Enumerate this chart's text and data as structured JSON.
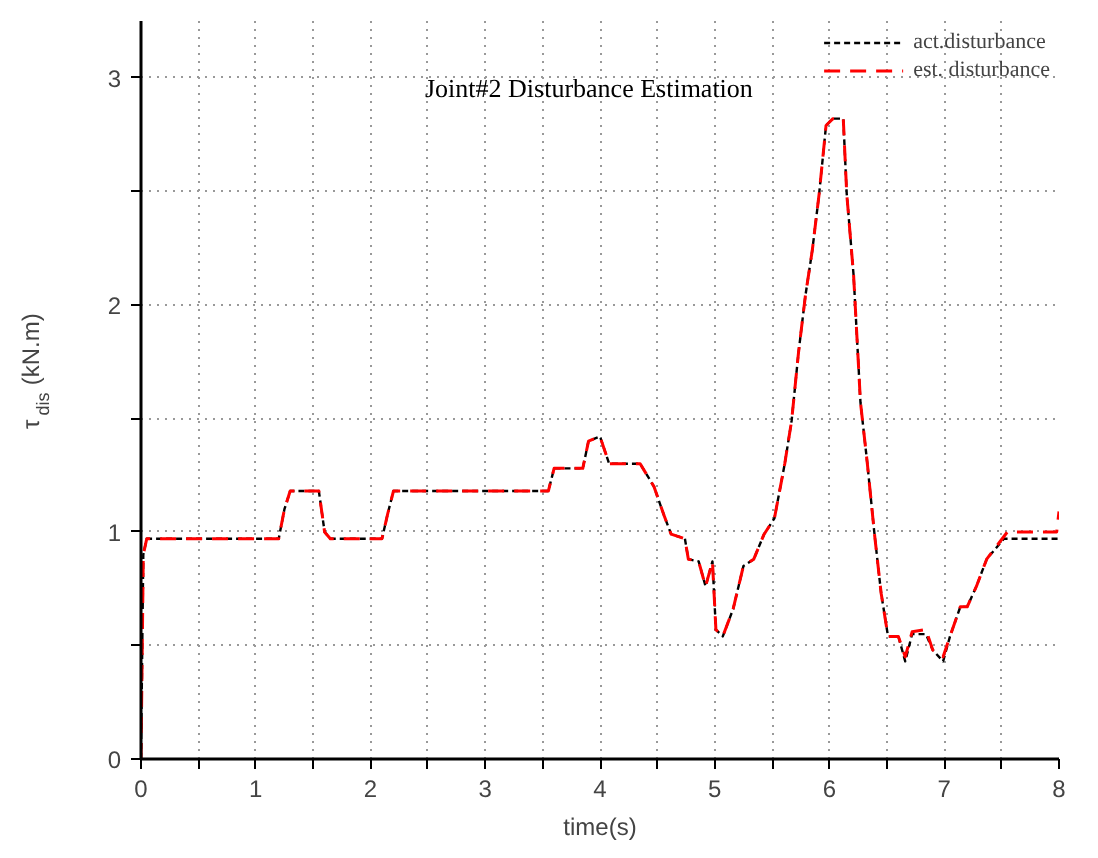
{
  "chart_data": {
    "type": "line",
    "title": "Joint#2 Disturbance Estimation",
    "xlabel": "time(s)",
    "ylabel": "τ$_{dis}$(kN.m)",
    "xlim": [
      0,
      8
    ],
    "ylim": [
      0,
      3.25
    ],
    "xticks": [
      0,
      {
        "value": 0.5,
        "label": null
      },
      1,
      {
        "value": 1.5,
        "label": null
      },
      2,
      {
        "value": 2.5,
        "label": null
      },
      3,
      {
        "value": 3.5,
        "label": null
      },
      4,
      {
        "value": 4.5,
        "label": null
      },
      5,
      {
        "value": 5.5,
        "label": null
      },
      6,
      {
        "value": 6.5,
        "label": null
      },
      7,
      {
        "value": 7.5,
        "label": null
      },
      8
    ],
    "yticks": [
      0,
      {
        "value": 0.5,
        "label": null
      },
      1,
      {
        "value": 1.5,
        "label": null
      },
      2,
      {
        "value": 2.5,
        "label": null
      },
      3
    ],
    "grid": true,
    "legend": "top right",
    "series": [
      {
        "name": "act.disturbance",
        "color": "#000000",
        "line_style": "dotted",
        "x": [
          0,
          0.02,
          0.05,
          1.2,
          1.25,
          1.3,
          1.55,
          1.6,
          1.65,
          2.1,
          2.15,
          2.2,
          3.55,
          3.6,
          3.85,
          3.9,
          4.0,
          4.08,
          4.35,
          4.47,
          4.56,
          4.62,
          4.74,
          4.77,
          4.86,
          4.92,
          4.98,
          5.01,
          5.07,
          5.16,
          5.25,
          5.34,
          5.43,
          5.52,
          5.61,
          5.67,
          5.73,
          5.79,
          5.85,
          5.91,
          5.97,
          6.03,
          6.12,
          6.15,
          6.21,
          6.27,
          6.33,
          6.39,
          6.45,
          6.51,
          6.6,
          6.66,
          6.72,
          6.84,
          6.9,
          6.99,
          7.05,
          7.14,
          7.2,
          7.28,
          7.37,
          7.52,
          8.0
        ],
        "values": [
          0,
          0.9,
          0.97,
          0.97,
          1.1,
          1.18,
          1.18,
          1.0,
          0.97,
          0.97,
          1.08,
          1.18,
          1.18,
          1.28,
          1.28,
          1.4,
          1.42,
          1.3,
          1.3,
          1.2,
          1.07,
          0.99,
          0.97,
          0.88,
          0.87,
          0.76,
          0.87,
          0.57,
          0.54,
          0.66,
          0.85,
          0.88,
          0.99,
          1.06,
          1.3,
          1.49,
          1.79,
          2.04,
          2.24,
          2.49,
          2.79,
          2.82,
          2.82,
          2.49,
          2.13,
          1.57,
          1.3,
          1.0,
          0.73,
          0.54,
          0.54,
          0.43,
          0.55,
          0.55,
          0.48,
          0.43,
          0.54,
          0.67,
          0.67,
          0.76,
          0.88,
          0.97,
          0.97
        ]
      },
      {
        "name": "est. disturbance",
        "color": "#ff0000",
        "line_style": "dashed",
        "x": [
          0,
          0.02,
          0.05,
          1.2,
          1.25,
          1.3,
          1.55,
          1.6,
          1.65,
          2.1,
          2.15,
          2.2,
          3.55,
          3.6,
          3.85,
          3.9,
          4.0,
          4.08,
          4.35,
          4.47,
          4.56,
          4.62,
          4.74,
          4.77,
          4.86,
          4.92,
          4.98,
          5.01,
          5.07,
          5.16,
          5.25,
          5.34,
          5.43,
          5.52,
          5.61,
          5.67,
          5.73,
          5.79,
          5.85,
          5.91,
          5.97,
          6.03,
          6.12,
          6.15,
          6.21,
          6.27,
          6.33,
          6.39,
          6.45,
          6.51,
          6.6,
          6.66,
          6.72,
          6.84,
          6.9,
          6.99,
          7.05,
          7.14,
          7.2,
          7.28,
          7.37,
          7.55,
          7.98,
          8.0
        ],
        "values": [
          0,
          0.9,
          0.97,
          0.97,
          1.1,
          1.18,
          1.18,
          1.0,
          0.97,
          0.97,
          1.08,
          1.18,
          1.18,
          1.28,
          1.28,
          1.4,
          1.42,
          1.3,
          1.3,
          1.2,
          1.07,
          0.99,
          0.97,
          0.88,
          0.87,
          0.76,
          0.87,
          0.57,
          0.54,
          0.66,
          0.85,
          0.88,
          0.99,
          1.06,
          1.3,
          1.49,
          1.79,
          2.04,
          2.24,
          2.49,
          2.79,
          2.82,
          2.82,
          2.49,
          2.13,
          1.57,
          1.3,
          1.0,
          0.73,
          0.54,
          0.54,
          0.45,
          0.56,
          0.57,
          0.48,
          0.45,
          0.54,
          0.67,
          0.67,
          0.76,
          0.88,
          1.0,
          1.0,
          1.09
        ]
      }
    ]
  }
}
